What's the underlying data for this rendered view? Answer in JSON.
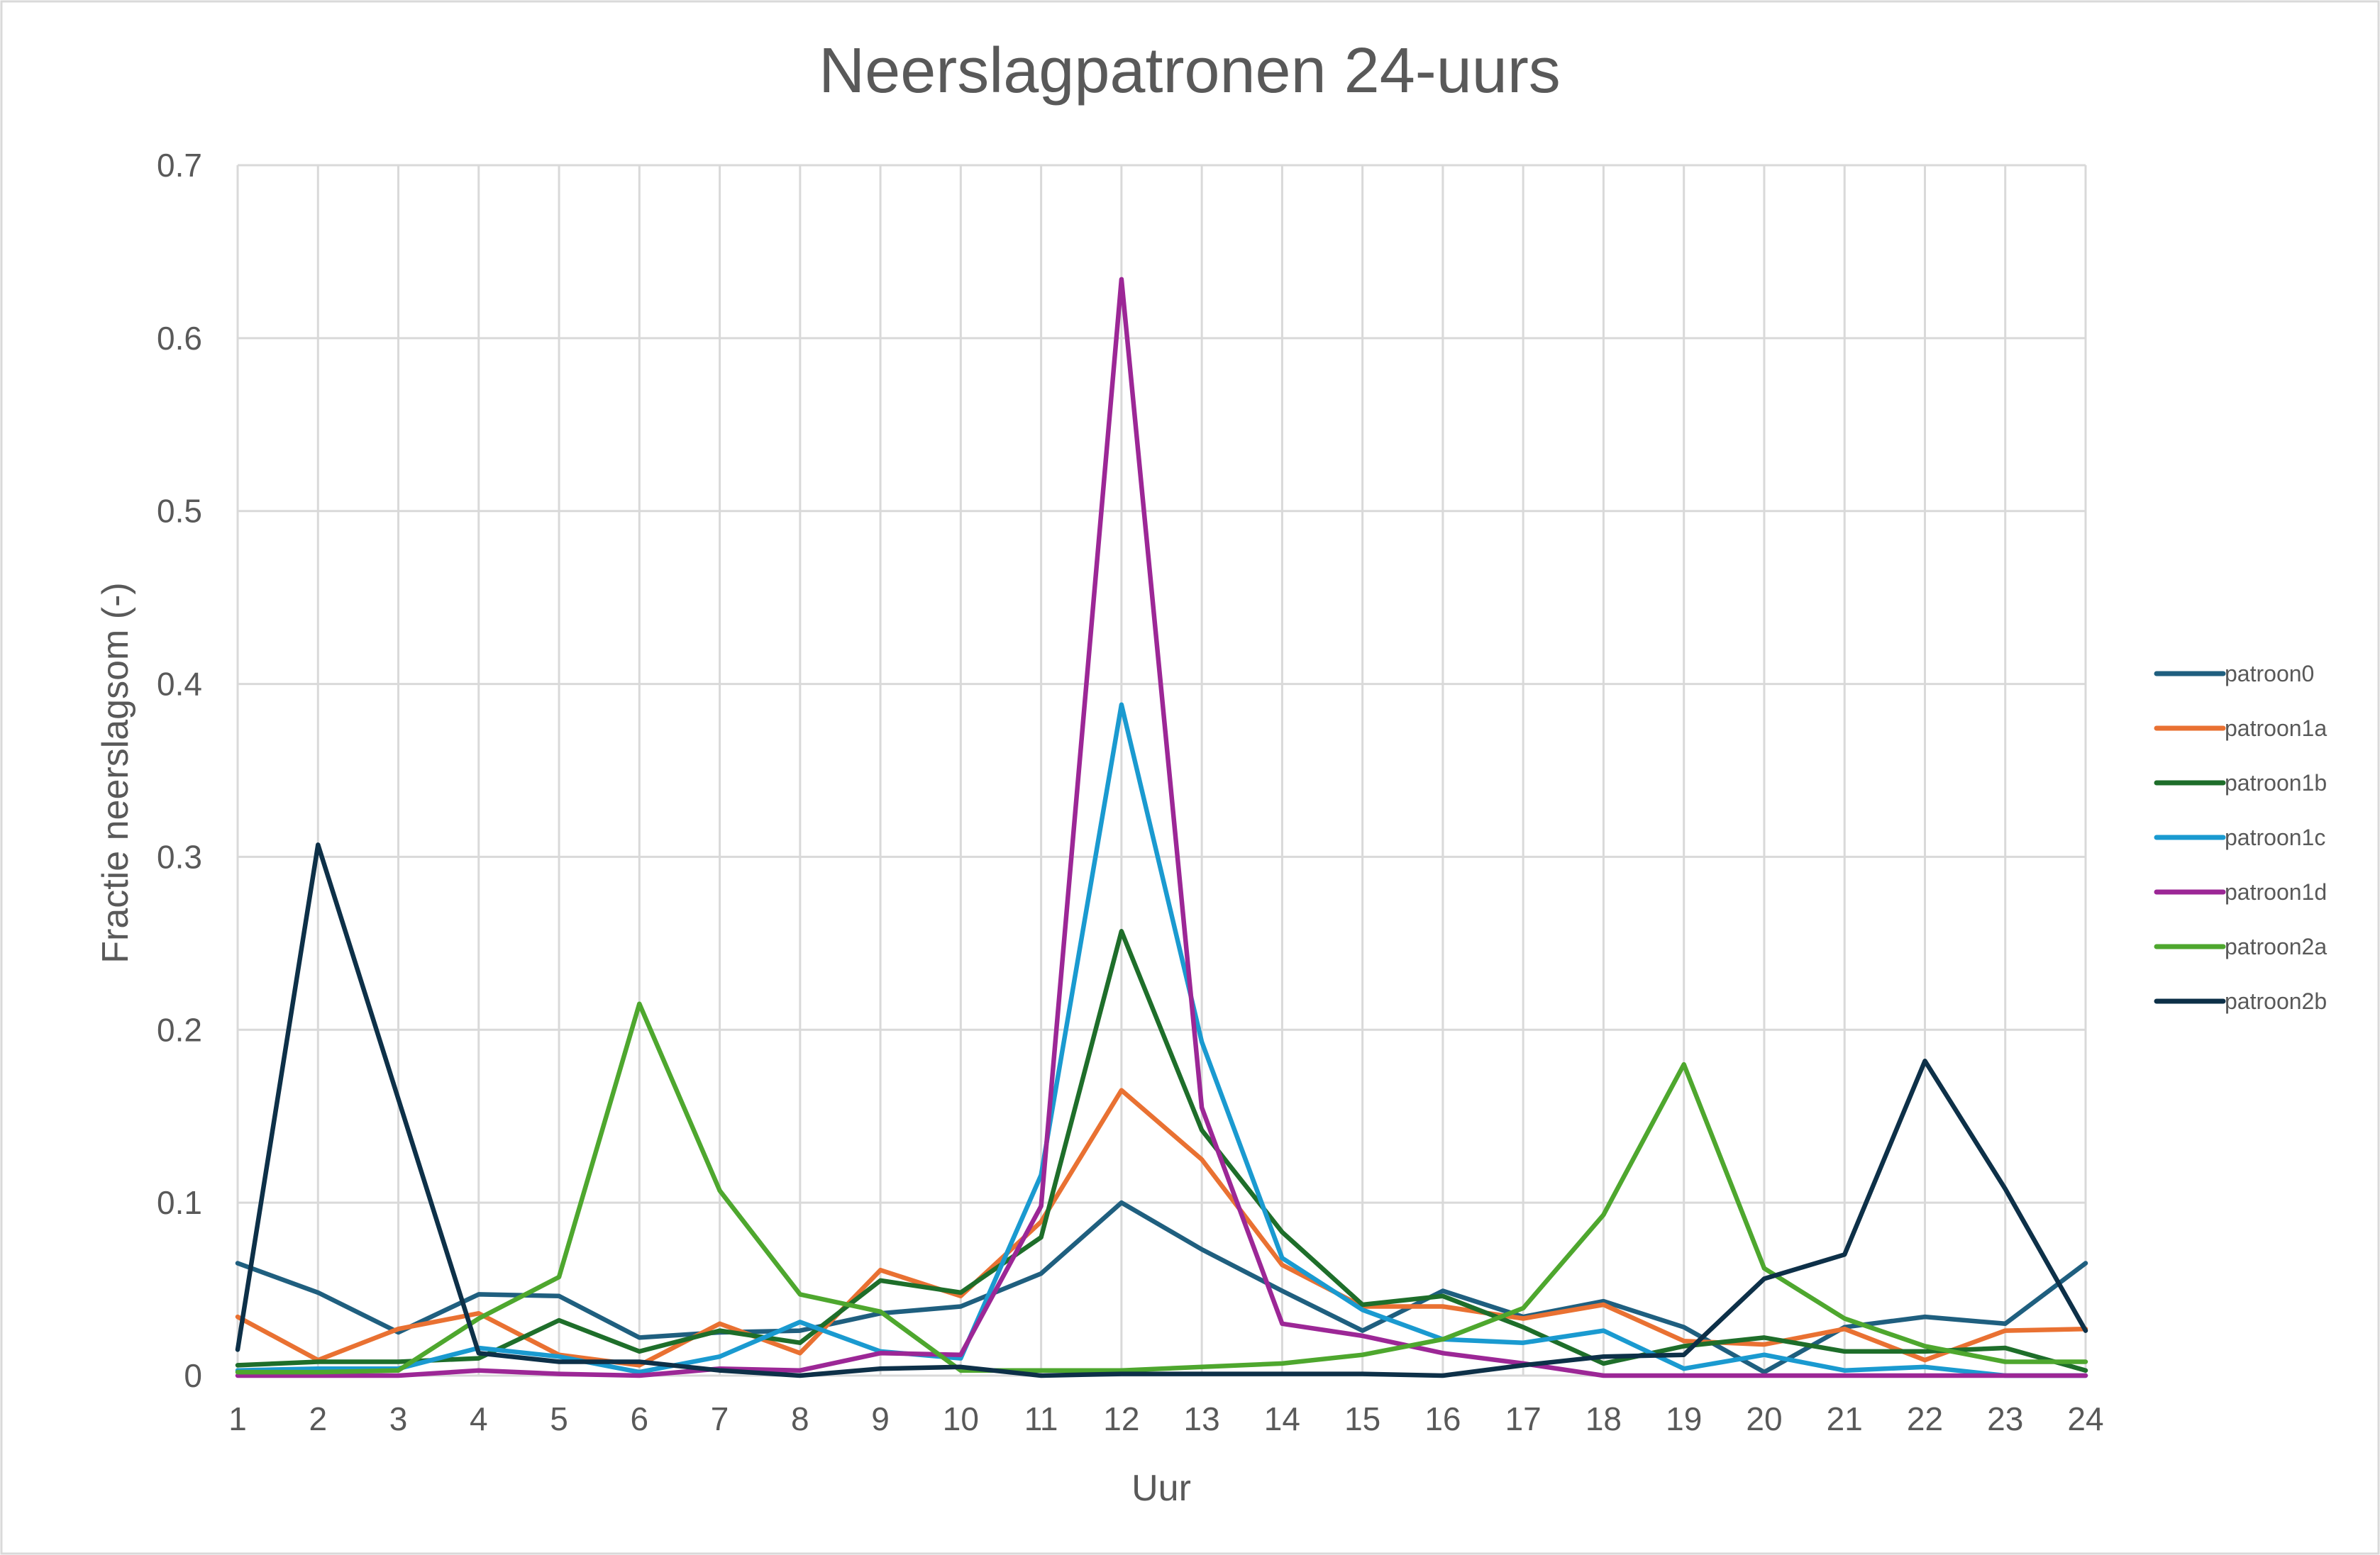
{
  "chart_data": {
    "type": "line",
    "title": "Neerslagpatronen 24-uurs",
    "xlabel": "Uur",
    "ylabel": "Fractie neerslagsom (-)",
    "x": [
      1,
      2,
      3,
      4,
      5,
      6,
      7,
      8,
      9,
      10,
      11,
      12,
      13,
      14,
      15,
      16,
      17,
      18,
      19,
      20,
      21,
      22,
      23,
      24
    ],
    "ylim": [
      0,
      0.7
    ],
    "y_ticks": [
      0,
      0.1,
      0.2,
      0.3,
      0.4,
      0.5,
      0.6,
      0.7
    ],
    "y_tick_labels": [
      "0",
      "0.1",
      "0.2",
      "0.3",
      "0.4",
      "0.5",
      "0.6",
      "0.7"
    ],
    "grid": true,
    "legend_position": "right",
    "series": [
      {
        "name": "patroon0",
        "color": "#1f5f7f",
        "values": [
          0.065,
          0.048,
          0.025,
          0.047,
          0.046,
          0.022,
          0.025,
          0.026,
          0.036,
          0.04,
          0.059,
          0.1,
          0.073,
          0.049,
          0.026,
          0.049,
          0.034,
          0.043,
          0.028,
          0.002,
          0.028,
          0.034,
          0.03,
          0.065
        ]
      },
      {
        "name": "patroon1a",
        "color": "#e97132",
        "values": [
          0.034,
          0.009,
          0.027,
          0.036,
          0.012,
          0.006,
          0.03,
          0.013,
          0.061,
          0.046,
          0.089,
          0.165,
          0.125,
          0.064,
          0.04,
          0.04,
          0.033,
          0.041,
          0.02,
          0.018,
          0.027,
          0.009,
          0.026,
          0.027
        ]
      },
      {
        "name": "patroon1b",
        "color": "#1e6e2a",
        "values": [
          0.006,
          0.008,
          0.008,
          0.01,
          0.032,
          0.014,
          0.026,
          0.019,
          0.055,
          0.048,
          0.08,
          0.257,
          0.142,
          0.083,
          0.041,
          0.046,
          0.028,
          0.007,
          0.017,
          0.022,
          0.014,
          0.014,
          0.016,
          0.003
        ]
      },
      {
        "name": "patroon1c",
        "color": "#1a9ad0",
        "values": [
          0.003,
          0.004,
          0.004,
          0.016,
          0.011,
          0.002,
          0.011,
          0.031,
          0.014,
          0.01,
          0.116,
          0.388,
          0.193,
          0.068,
          0.038,
          0.021,
          0.019,
          0.026,
          0.004,
          0.012,
          0.003,
          0.005,
          0.0,
          0.0
        ]
      },
      {
        "name": "patroon1d",
        "color": "#9c2796",
        "values": [
          0.0,
          0.0,
          0.0,
          0.003,
          0.001,
          0.0,
          0.004,
          0.003,
          0.013,
          0.012,
          0.098,
          0.634,
          0.155,
          0.03,
          0.023,
          0.013,
          0.007,
          0.0,
          0.0,
          0.0,
          0.0,
          0.0,
          0.0,
          0.0
        ]
      },
      {
        "name": "patroon2a",
        "color": "#4ea72e",
        "values": [
          0.002,
          0.002,
          0.003,
          0.033,
          0.057,
          0.215,
          0.107,
          0.047,
          0.037,
          0.003,
          0.003,
          0.003,
          0.005,
          0.007,
          0.012,
          0.021,
          0.039,
          0.093,
          0.18,
          0.062,
          0.033,
          0.017,
          0.008,
          0.008
        ]
      },
      {
        "name": "patroon2b",
        "color": "#0d3048",
        "values": [
          0.015,
          0.307,
          0.16,
          0.013,
          0.008,
          0.008,
          0.003,
          0.0,
          0.004,
          0.005,
          0.0,
          0.001,
          0.001,
          0.001,
          0.001,
          0.0,
          0.006,
          0.011,
          0.012,
          0.056,
          0.07,
          0.182,
          0.108,
          0.026
        ]
      }
    ]
  }
}
